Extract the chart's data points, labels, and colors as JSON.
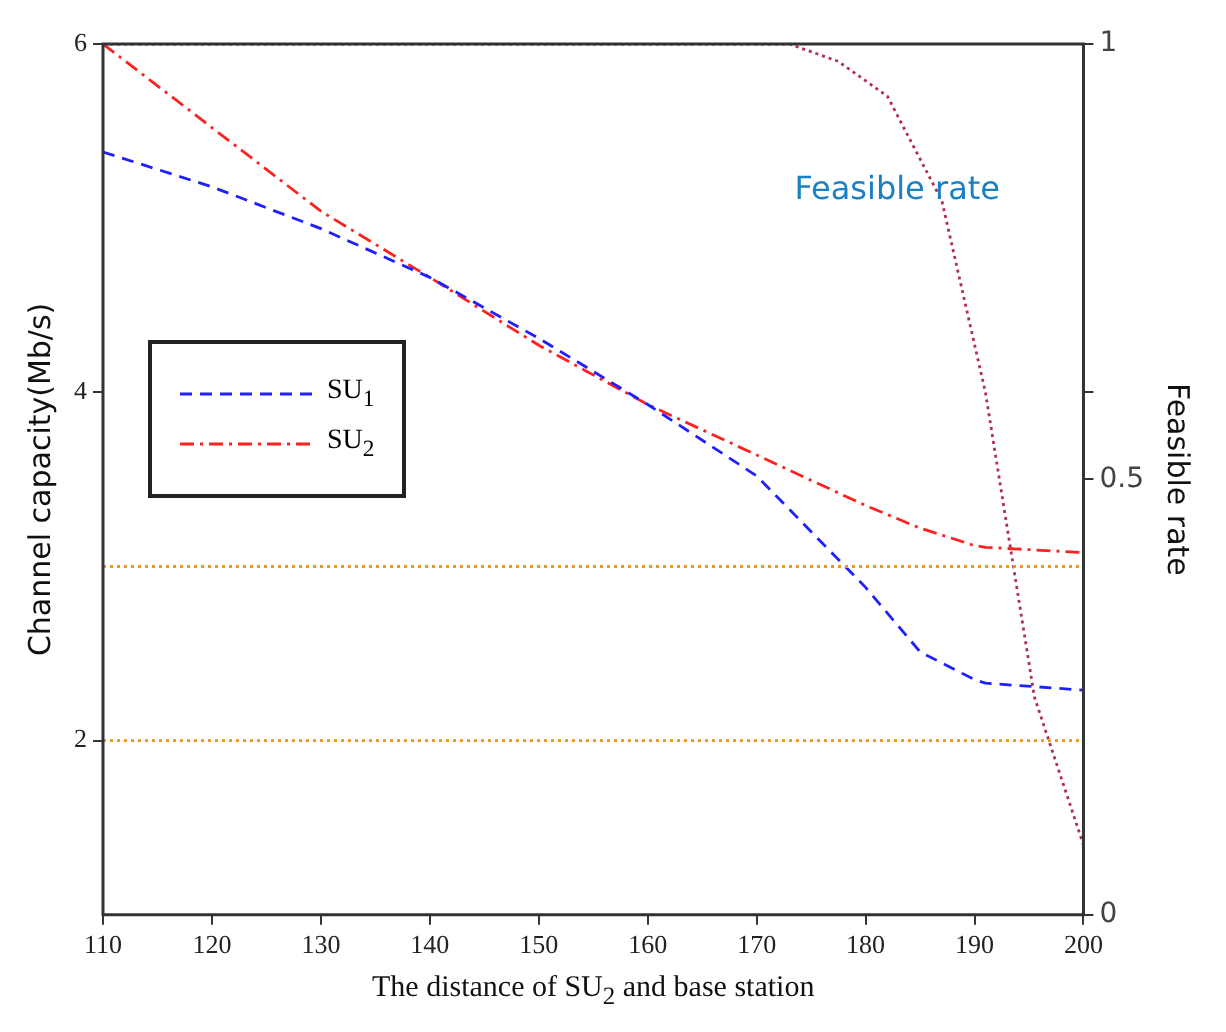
{
  "chart_data": {
    "type": "line",
    "xlabel": "The distance of SU$_{2}$ and base station",
    "ylabel": "Channel capacity(Mb/s)",
    "y2label": "Feasible rate",
    "xlim": [
      110,
      200
    ],
    "xticks": [
      110,
      120,
      130,
      140,
      150,
      160,
      170,
      180,
      190,
      200
    ],
    "ylim": [
      1,
      6
    ],
    "yticks": [
      2,
      4,
      6
    ],
    "y2lim": [
      0,
      1
    ],
    "y2ticks": [
      0,
      0.5,
      {
        "value": 0.6,
        "label": null
      },
      1
    ],
    "grid": false,
    "legend": "left",
    "marker": "none",
    "series": [
      {
        "name": "SU$_{1}$",
        "color": "#1f1fff",
        "line_style": "dashed",
        "x": [
          110,
          120,
          130,
          140,
          150,
          160,
          170,
          180,
          185,
          190,
          191,
          200
        ],
        "values": [
          5.38,
          5.18,
          4.94,
          4.66,
          4.31,
          3.93,
          3.52,
          2.88,
          2.51,
          2.35,
          2.33,
          2.29
        ]
      },
      {
        "name": "SU$_{2}$",
        "color": "#ff2020",
        "line_style": "dashdot",
        "x": [
          110,
          120,
          130,
          140,
          150,
          160,
          170,
          180,
          185,
          190,
          191,
          200
        ],
        "values": [
          6.0,
          5.52,
          5.04,
          4.66,
          4.27,
          3.93,
          3.64,
          3.35,
          3.22,
          3.12,
          3.11,
          3.08
        ]
      },
      {
        "color": "#b03050",
        "line_style": "dotted",
        "axis": "y2",
        "x": [
          110,
          173,
          177.5,
          182,
          187,
          191,
          195.5,
          200
        ],
        "values": [
          1,
          1,
          0.98,
          0.94,
          0.82,
          0.6,
          0.25,
          0.08
        ]
      }
    ],
    "ref_lines": [
      {
        "axis": "y",
        "value": 3,
        "color": "#e89a20",
        "line_style": "dotted"
      },
      {
        "axis": "y",
        "value": 2,
        "color": "#e89a20",
        "line_style": "dotted"
      }
    ],
    "annotations": [
      "Feasible rate"
    ]
  }
}
